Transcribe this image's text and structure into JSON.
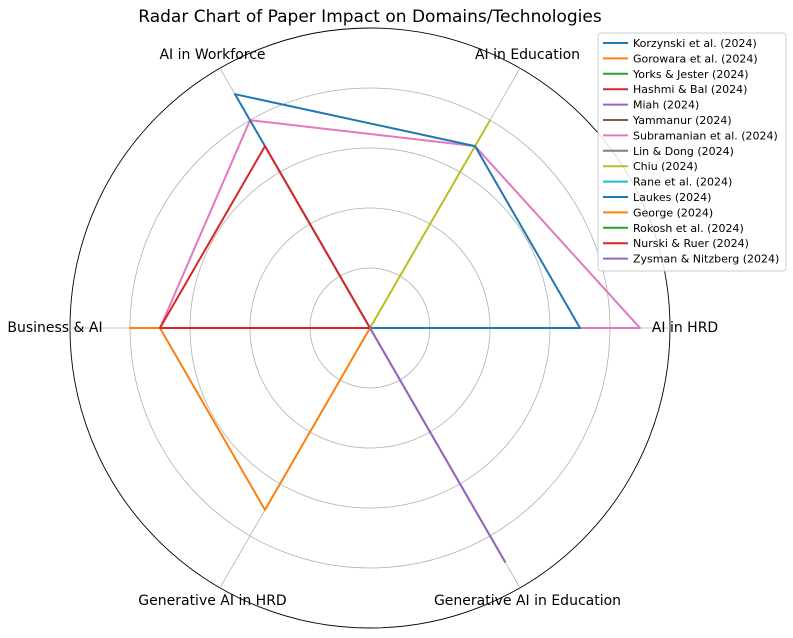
{
  "chart_data": {
    "type": "radar",
    "title": "Radar Chart of Paper Impact on Domains/Technologies",
    "axes": [
      "AI in HRD",
      "AI in Education",
      "AI in Workforce",
      "Business & AI",
      "Generative AI in HRD",
      "Generative AI in Education"
    ],
    "rmax": 5,
    "rticks": [
      1,
      2,
      3,
      4,
      5
    ],
    "grid": true,
    "legend_position": "top-right",
    "series": [
      {
        "name": "Korzynski et al. (2024)",
        "color": "#1f77b4",
        "values": [
          4,
          0,
          0,
          0,
          0,
          0
        ]
      },
      {
        "name": "Gorowara et al. (2024)",
        "color": "#ff7f0e",
        "values": [
          0,
          0,
          0,
          4,
          0,
          0
        ]
      },
      {
        "name": "Yorks & Jester (2024)",
        "color": "#2ca02c",
        "values": [
          0,
          0,
          0,
          0,
          0,
          0
        ]
      },
      {
        "name": "Hashmi & Bal (2024)",
        "color": "#d62728",
        "values": [
          0,
          0,
          0,
          0,
          0,
          0
        ]
      },
      {
        "name": "Miah (2024)",
        "color": "#9467bd",
        "values": [
          0,
          0,
          0,
          0,
          0,
          4.5
        ]
      },
      {
        "name": "Yammanur (2024)",
        "color": "#8c564b",
        "values": [
          0,
          0,
          0,
          0,
          0,
          0
        ]
      },
      {
        "name": "Subramanian et al. (2024)",
        "color": "#e377c2",
        "values": [
          4.5,
          3.5,
          4,
          3.5,
          0,
          0
        ]
      },
      {
        "name": "Lin & Dong (2024)",
        "color": "#7f7f7f",
        "values": [
          0,
          0,
          0,
          0,
          0,
          0
        ]
      },
      {
        "name": "Chiu (2024)",
        "color": "#bcbd22",
        "values": [
          0,
          4,
          0,
          0,
          0,
          0
        ]
      },
      {
        "name": "Rane et al. (2024)",
        "color": "#17becf",
        "values": [
          0,
          0,
          0,
          0,
          0,
          0
        ]
      },
      {
        "name": "Laukes (2024)",
        "color": "#1f77b4",
        "values": [
          3.5,
          3.5,
          4.5,
          0,
          0,
          0
        ]
      },
      {
        "name": "George (2024)",
        "color": "#ff7f0e",
        "values": [
          0,
          0,
          0,
          3.5,
          3.5,
          0
        ]
      },
      {
        "name": "Rokosh et al. (2024)",
        "color": "#2ca02c",
        "values": [
          0,
          0,
          0,
          0,
          0,
          0
        ]
      },
      {
        "name": "Nurski & Ruer (2024)",
        "color": "#d62728",
        "values": [
          0,
          0,
          3.5,
          3.5,
          0,
          0
        ]
      },
      {
        "name": "Zysman & Nitzberg (2024)",
        "color": "#9467bd",
        "values": [
          0,
          0,
          0,
          0,
          0,
          4.5
        ]
      }
    ]
  }
}
